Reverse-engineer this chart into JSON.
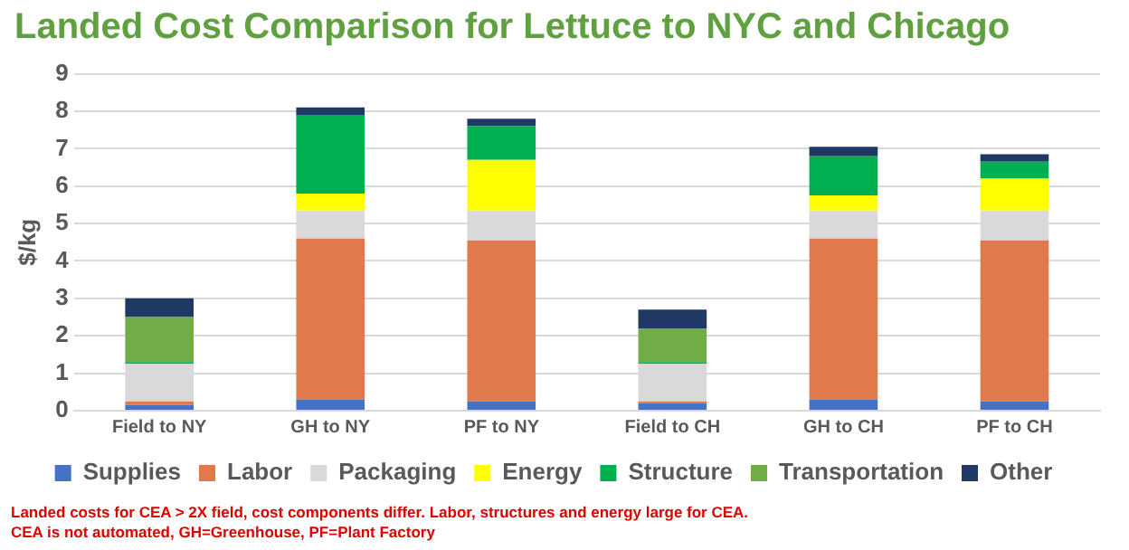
{
  "chart_data": {
    "type": "bar",
    "title": "Landed Cost Comparison for Lettuce to NYC and Chicago",
    "ylabel": "$/kg",
    "categories": [
      "Field to NY",
      "GH to NY",
      "PF to NY",
      "Field to CH",
      "GH to CH",
      "PF to CH"
    ],
    "stacked": true,
    "series": [
      {
        "name": "Supplies",
        "color": "#4472c4",
        "values": [
          0.15,
          0.3,
          0.25,
          0.2,
          0.3,
          0.25
        ]
      },
      {
        "name": "Labor",
        "color": "#e07a4c",
        "values": [
          0.1,
          4.3,
          4.3,
          0.05,
          4.3,
          4.3
        ]
      },
      {
        "name": "Packaging",
        "color": "#d9d9d9",
        "values": [
          1.0,
          0.75,
          0.8,
          1.0,
          0.75,
          0.8
        ]
      },
      {
        "name": "Energy",
        "color": "#ffff00",
        "values": [
          0,
          0.45,
          1.35,
          0,
          0.4,
          0.85
        ]
      },
      {
        "name": "Structure",
        "color": "#00b050",
        "values": [
          0.05,
          2.1,
          0.9,
          0.05,
          1.05,
          0.45
        ]
      },
      {
        "name": "Transportation",
        "color": "#70ad47",
        "values": [
          1.2,
          0,
          0,
          0.9,
          0,
          0
        ]
      },
      {
        "name": "Other",
        "color": "#203864",
        "values": [
          0.5,
          0.2,
          0.2,
          0.5,
          0.25,
          0.2
        ]
      }
    ],
    "ylim": [
      0,
      9
    ],
    "yticks": [
      0,
      1,
      2,
      3,
      4,
      5,
      6,
      7,
      8,
      9
    ],
    "grid": "y",
    "legend": "bottom",
    "annotations": [
      "Landed costs for CEA > 2X field, cost components differ.  Labor, structures and energy large for CEA.",
      "CEA is not automated, GH=Greenhouse, PF=Plant Factory"
    ]
  }
}
